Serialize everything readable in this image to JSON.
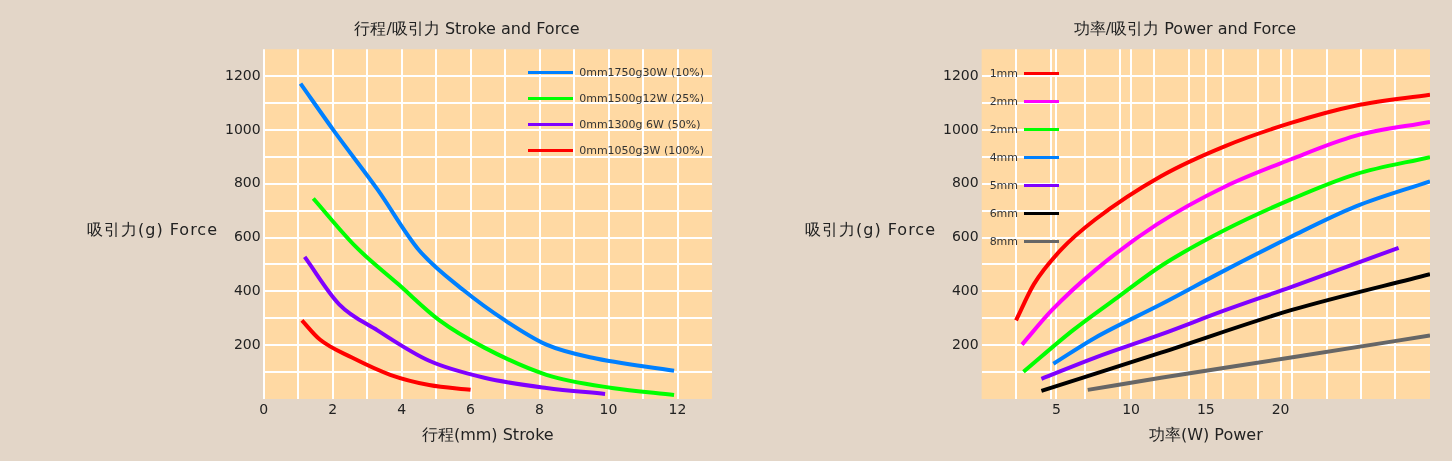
{
  "chart_data": [
    {
      "type": "line",
      "title": "行程/吸引力 Stroke and Force",
      "xlabel": "行程(mm) Stroke",
      "ylabel": "吸引力(g) Force",
      "xlim": [
        0,
        13
      ],
      "xticks": [
        0,
        {
          "value": 1,
          "label": null
        },
        2,
        {
          "value": 3,
          "label": null
        },
        4,
        {
          "value": 5,
          "label": null
        },
        6,
        {
          "value": 7,
          "label": null
        },
        8,
        {
          "value": 9,
          "label": null
        },
        10,
        {
          "value": 11,
          "label": null
        },
        12
      ],
      "ylim": [
        0,
        1300
      ],
      "yticks": [
        {
          "value": 100,
          "label": null
        },
        200,
        {
          "value": 300,
          "label": null
        },
        400,
        {
          "value": 500,
          "label": null
        },
        600,
        {
          "value": 700,
          "label": null
        },
        800,
        {
          "value": 900,
          "label": null
        },
        1000,
        {
          "value": 1100,
          "label": null
        },
        1200
      ],
      "grid": true,
      "legend": "top right",
      "series": [
        {
          "name": "0mm1750g30W (10%)",
          "color": "#0080ff",
          "x": [
            1.07,
            2.07,
            3.3,
            4.5,
            5.8,
            7.0,
            8.2,
            9.5,
            11.9
          ],
          "values": [
            1172,
            991,
            779,
            554,
            404,
            292,
            202,
            154,
            105
          ]
        },
        {
          "name": "0mm1500g12W (25%)",
          "color": "#00ff00",
          "x": [
            1.44,
            2.67,
            3.9,
            5.1,
            6.4,
            8.2,
            10.1,
            11.9
          ],
          "values": [
            745,
            566,
            427,
            292,
            191,
            90,
            41,
            15
          ]
        },
        {
          "name": "0mm1300g 6W (50%)",
          "color": "#8000ff",
          "x": [
            1.19,
            2.19,
            3.3,
            4.8,
            6.4,
            8.2,
            9.9
          ],
          "values": [
            528,
            352,
            255,
            142,
            79,
            41,
            19
          ]
        },
        {
          "name": "0mm1050g3W (100%)",
          "color": "#ff0000",
          "x": [
            1.11,
            1.63,
            2.56,
            3.67,
            4.8,
            6.0
          ],
          "values": [
            292,
            221,
            154,
            90,
            52,
            34
          ]
        }
      ]
    },
    {
      "type": "line",
      "title": "功率/吸引力 Power and Force",
      "xlabel": "功率(W) Power",
      "ylabel": "吸引力(g) Force",
      "xlim": [
        0,
        30
      ],
      "xticks": [
        {
          "value": 2.31,
          "label": null
        },
        {
          "value": 4.62,
          "label": null
        },
        5,
        {
          "value": 6.92,
          "label": null
        },
        {
          "value": 9.23,
          "label": null
        },
        10,
        {
          "value": 11.54,
          "label": null
        },
        {
          "value": 13.85,
          "label": null
        },
        15,
        {
          "value": 16.15,
          "label": null
        },
        {
          "value": 18.46,
          "label": null
        },
        20,
        {
          "value": 20.77,
          "label": null
        },
        {
          "value": 23.08,
          "label": null
        },
        {
          "value": 25.38,
          "label": null
        },
        {
          "value": 27.69,
          "label": null
        }
      ],
      "ylim": [
        0,
        1300
      ],
      "yticks": [
        {
          "value": 100,
          "label": null
        },
        200,
        {
          "value": 300,
          "label": null
        },
        400,
        {
          "value": 500,
          "label": null
        },
        600,
        {
          "value": 700,
          "label": null
        },
        800,
        {
          "value": 900,
          "label": null
        },
        1000,
        {
          "value": 1100,
          "label": null
        },
        1200
      ],
      "grid": true,
      "legend": "top left",
      "series": [
        {
          "name": "1mm",
          "color": "#ff0000",
          "x": [
            2.3,
            3.5,
            5.3,
            7.6,
            12.0,
            16.3,
            20.7,
            25.0,
            30
          ],
          "values": [
            292,
            427,
            554,
            667,
            828,
            940,
            1026,
            1090,
            1131
          ]
        },
        {
          "name": "2mm",
          "color": "#ff00ff",
          "x": [
            2.7,
            4.7,
            7.6,
            11.7,
            16.3,
            20.7,
            25.0,
            30
          ],
          "values": [
            202,
            330,
            479,
            648,
            790,
            891,
            978,
            1030
          ]
        },
        {
          "name": "2mm",
          "color": "#00ff00",
          "x": [
            2.8,
            6.1,
            9.1,
            12.1,
            16.3,
            20.7,
            25.0,
            30
          ],
          "values": [
            101,
            255,
            378,
            498,
            629,
            742,
            835,
            899
          ]
        },
        {
          "name": "4mm",
          "color": "#0080ff",
          "x": [
            4.8,
            7.6,
            12.0,
            16.3,
            20.7,
            25.0,
            30
          ],
          "values": [
            131,
            228,
            352,
            479,
            603,
            715,
            809
          ]
        },
        {
          "name": "5mm",
          "color": "#8000ff",
          "x": [
            4.0,
            7.6,
            12.0,
            16.3,
            20.7,
            27.9
          ],
          "values": [
            75,
            154,
            240,
            330,
            416,
            562
          ]
        },
        {
          "name": "6mm",
          "color": "#000000",
          "x": [
            4.0,
            12.0,
            20.7,
            30
          ],
          "values": [
            30,
            172,
            330,
            464
          ]
        },
        {
          "name": "8mm",
          "color": "#666666",
          "x": [
            7.1,
            12.0,
            20.7,
            30
          ],
          "values": [
            34,
            79,
            154,
            236
          ]
        }
      ]
    }
  ]
}
